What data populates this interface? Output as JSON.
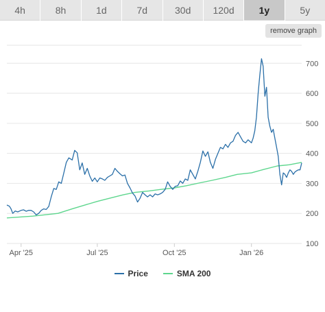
{
  "tabs": [
    {
      "label": "4h",
      "active": false
    },
    {
      "label": "8h",
      "active": false
    },
    {
      "label": "1d",
      "active": false
    },
    {
      "label": "7d",
      "active": false
    },
    {
      "label": "30d",
      "active": false
    },
    {
      "label": "120d",
      "active": false
    },
    {
      "label": "1y",
      "active": true
    },
    {
      "label": "5y",
      "active": false
    }
  ],
  "remove_graph_label": "remove graph",
  "colors": {
    "price": "#2a6fa8",
    "sma": "#5dd68d",
    "grid": "#e6e6e6",
    "axis_text": "#555555"
  },
  "chart_data": {
    "type": "line",
    "title": "",
    "xlabel": "",
    "ylabel": "",
    "grid": true,
    "legend_placement": "bottom-center",
    "ylim": [
      100,
      760
    ],
    "yticks": [
      100,
      200,
      300,
      400,
      500,
      600,
      700
    ],
    "xlim": [
      "2025-03-15",
      "2026-03-02"
    ],
    "xticks": [
      {
        "date": "2025-04-01",
        "label": "Apr '25"
      },
      {
        "date": "2025-07-01",
        "label": "Jul '25"
      },
      {
        "date": "2025-10-01",
        "label": "Oct '25"
      },
      {
        "date": "2026-01-01",
        "label": "Jan '26"
      }
    ],
    "series": [
      {
        "name": "Price",
        "color": "#2a6fa8",
        "points": [
          [
            "2025-03-15",
            228
          ],
          [
            "2025-03-18",
            224
          ],
          [
            "2025-03-20",
            215
          ],
          [
            "2025-03-22",
            200
          ],
          [
            "2025-03-25",
            208
          ],
          [
            "2025-03-28",
            205
          ],
          [
            "2025-04-01",
            210
          ],
          [
            "2025-04-04",
            212
          ],
          [
            "2025-04-07",
            207
          ],
          [
            "2025-04-10",
            210
          ],
          [
            "2025-04-13",
            210
          ],
          [
            "2025-04-16",
            205
          ],
          [
            "2025-04-19",
            195
          ],
          [
            "2025-04-22",
            200
          ],
          [
            "2025-04-25",
            210
          ],
          [
            "2025-04-28",
            215
          ],
          [
            "2025-05-01",
            213
          ],
          [
            "2025-05-04",
            223
          ],
          [
            "2025-05-07",
            255
          ],
          [
            "2025-05-10",
            283
          ],
          [
            "2025-05-13",
            280
          ],
          [
            "2025-05-16",
            305
          ],
          [
            "2025-05-19",
            300
          ],
          [
            "2025-05-22",
            335
          ],
          [
            "2025-05-25",
            370
          ],
          [
            "2025-05-28",
            385
          ],
          [
            "2025-06-01",
            378
          ],
          [
            "2025-06-04",
            410
          ],
          [
            "2025-06-07",
            402
          ],
          [
            "2025-06-10",
            345
          ],
          [
            "2025-06-13",
            368
          ],
          [
            "2025-06-16",
            330
          ],
          [
            "2025-06-19",
            350
          ],
          [
            "2025-06-22",
            325
          ],
          [
            "2025-06-25",
            307
          ],
          [
            "2025-06-28",
            318
          ],
          [
            "2025-07-01",
            305
          ],
          [
            "2025-07-04",
            318
          ],
          [
            "2025-07-07",
            315
          ],
          [
            "2025-07-10",
            310
          ],
          [
            "2025-07-13",
            320
          ],
          [
            "2025-07-16",
            325
          ],
          [
            "2025-07-19",
            330
          ],
          [
            "2025-07-22",
            350
          ],
          [
            "2025-07-25",
            340
          ],
          [
            "2025-07-28",
            332
          ],
          [
            "2025-07-31",
            325
          ],
          [
            "2025-08-03",
            328
          ],
          [
            "2025-08-06",
            300
          ],
          [
            "2025-08-09",
            285
          ],
          [
            "2025-08-12",
            268
          ],
          [
            "2025-08-15",
            258
          ],
          [
            "2025-08-18",
            238
          ],
          [
            "2025-08-21",
            250
          ],
          [
            "2025-08-24",
            270
          ],
          [
            "2025-08-27",
            262
          ],
          [
            "2025-08-30",
            255
          ],
          [
            "2025-09-02",
            262
          ],
          [
            "2025-09-05",
            255
          ],
          [
            "2025-09-08",
            265
          ],
          [
            "2025-09-11",
            262
          ],
          [
            "2025-09-14",
            265
          ],
          [
            "2025-09-17",
            270
          ],
          [
            "2025-09-20",
            280
          ],
          [
            "2025-09-23",
            305
          ],
          [
            "2025-09-26",
            290
          ],
          [
            "2025-09-29",
            280
          ],
          [
            "2025-10-02",
            290
          ],
          [
            "2025-10-05",
            292
          ],
          [
            "2025-10-08",
            308
          ],
          [
            "2025-10-11",
            300
          ],
          [
            "2025-10-14",
            315
          ],
          [
            "2025-10-17",
            310
          ],
          [
            "2025-10-20",
            345
          ],
          [
            "2025-10-23",
            330
          ],
          [
            "2025-10-26",
            315
          ],
          [
            "2025-10-29",
            340
          ],
          [
            "2025-11-01",
            370
          ],
          [
            "2025-11-04",
            408
          ],
          [
            "2025-11-07",
            390
          ],
          [
            "2025-11-10",
            405
          ],
          [
            "2025-11-13",
            370
          ],
          [
            "2025-11-16",
            350
          ],
          [
            "2025-11-19",
            380
          ],
          [
            "2025-11-22",
            400
          ],
          [
            "2025-11-25",
            420
          ],
          [
            "2025-11-28",
            415
          ],
          [
            "2025-12-01",
            430
          ],
          [
            "2025-12-04",
            420
          ],
          [
            "2025-12-07",
            435
          ],
          [
            "2025-12-10",
            440
          ],
          [
            "2025-12-13",
            460
          ],
          [
            "2025-12-16",
            470
          ],
          [
            "2025-12-19",
            455
          ],
          [
            "2025-12-22",
            440
          ],
          [
            "2025-12-25",
            435
          ],
          [
            "2025-12-28",
            445
          ],
          [
            "2026-01-01",
            435
          ],
          [
            "2026-01-03",
            450
          ],
          [
            "2026-01-05",
            475
          ],
          [
            "2026-01-07",
            520
          ],
          [
            "2026-01-09",
            600
          ],
          [
            "2026-01-11",
            660
          ],
          [
            "2026-01-13",
            715
          ],
          [
            "2026-01-15",
            690
          ],
          [
            "2026-01-17",
            590
          ],
          [
            "2026-01-19",
            620
          ],
          [
            "2026-01-21",
            520
          ],
          [
            "2026-01-23",
            490
          ],
          [
            "2026-01-25",
            470
          ],
          [
            "2026-01-27",
            480
          ],
          [
            "2026-01-29",
            450
          ],
          [
            "2026-01-31",
            420
          ],
          [
            "2026-02-02",
            390
          ],
          [
            "2026-02-04",
            330
          ],
          [
            "2026-02-06",
            295
          ],
          [
            "2026-02-08",
            335
          ],
          [
            "2026-02-10",
            330
          ],
          [
            "2026-02-12",
            320
          ],
          [
            "2026-02-14",
            335
          ],
          [
            "2026-02-16",
            345
          ],
          [
            "2026-02-18",
            340
          ],
          [
            "2026-02-20",
            330
          ],
          [
            "2026-02-22",
            338
          ],
          [
            "2026-02-24",
            342
          ],
          [
            "2026-02-26",
            345
          ],
          [
            "2026-02-28",
            345
          ],
          [
            "2026-03-02",
            368
          ]
        ]
      },
      {
        "name": "SMA 200",
        "color": "#5dd68d",
        "points": [
          [
            "2025-03-15",
            185
          ],
          [
            "2025-04-15",
            191
          ],
          [
            "2025-05-15",
            200
          ],
          [
            "2025-06-01",
            215
          ],
          [
            "2025-06-15",
            227
          ],
          [
            "2025-07-01",
            240
          ],
          [
            "2025-07-15",
            250
          ],
          [
            "2025-08-01",
            262
          ],
          [
            "2025-08-15",
            270
          ],
          [
            "2025-09-01",
            275
          ],
          [
            "2025-09-15",
            280
          ],
          [
            "2025-10-01",
            285
          ],
          [
            "2025-10-15",
            292
          ],
          [
            "2025-11-01",
            302
          ],
          [
            "2025-11-15",
            310
          ],
          [
            "2025-12-01",
            320
          ],
          [
            "2025-12-15",
            330
          ],
          [
            "2026-01-01",
            335
          ],
          [
            "2026-01-15",
            346
          ],
          [
            "2026-02-01",
            358
          ],
          [
            "2026-02-15",
            362
          ],
          [
            "2026-03-02",
            370
          ]
        ]
      }
    ]
  }
}
